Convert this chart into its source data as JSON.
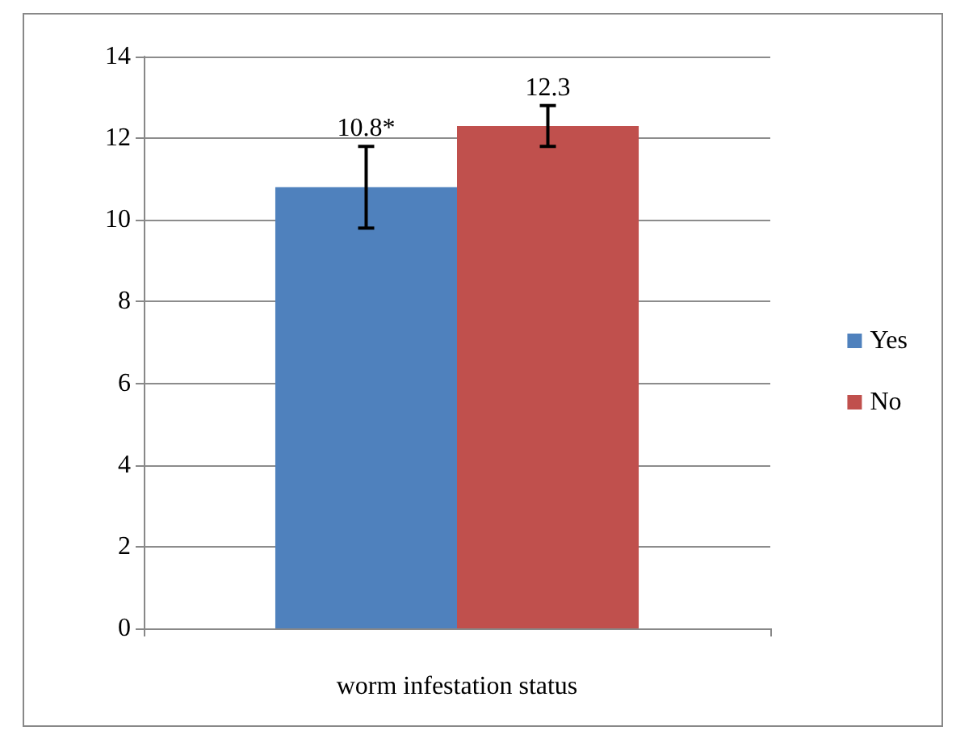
{
  "chart_data": {
    "type": "bar",
    "xlabel": "worm infestation status",
    "categories": [
      null
    ],
    "series": [
      {
        "name": "Yes",
        "color": "#4f81bd",
        "values": [
          10.8
        ],
        "errors": [
          1
        ],
        "value_labels": [
          "10.8*"
        ]
      },
      {
        "name": "No",
        "color": "#c0504d",
        "values": [
          12.3
        ],
        "errors": [
          0.5
        ],
        "value_labels": [
          "12.3"
        ]
      }
    ],
    "ylim": [
      0,
      14
    ],
    "yticks": [
      0,
      2,
      4,
      6,
      8,
      10,
      12,
      14
    ],
    "grid": "y",
    "legend": "right"
  }
}
